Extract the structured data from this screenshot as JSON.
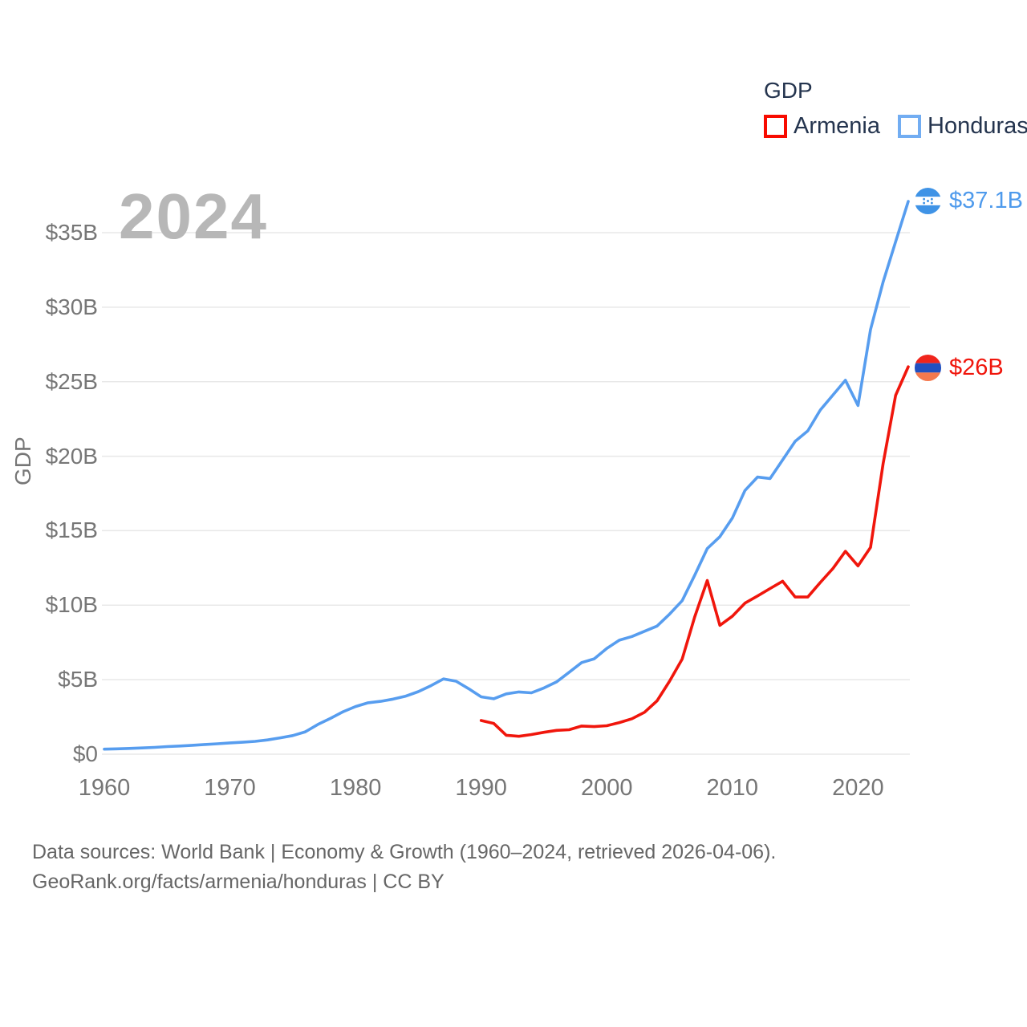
{
  "watermark_year": "2024",
  "legend": {
    "title": "GDP",
    "items": [
      {
        "label": "Armenia",
        "swatch_color": "#f80b00"
      },
      {
        "label": "Honduras",
        "swatch_color": "#72adf2"
      }
    ]
  },
  "end_labels": {
    "honduras": {
      "value_label": "$37.1B",
      "flag_icon": "honduras-flag-icon",
      "text_color": "#4e9aec"
    },
    "armenia": {
      "value_label": "$26B",
      "flag_icon": "armenia-flag-icon",
      "text_color": "#f0160c"
    }
  },
  "footer": {
    "line1": "Data sources: World Bank | Economy & Growth (1960–2024, retrieved 2026-04-06).",
    "line2": "GeoRank.org/facts/armenia/honduras | CC BY"
  },
  "chart_data": {
    "type": "line",
    "title": "GDP",
    "ylabel": "GDP",
    "xlabel": "",
    "unit": "current US$, billions",
    "xlim": [
      1960,
      2024
    ],
    "ylim": [
      0,
      37.5
    ],
    "grid": "horizontal-only",
    "legend_position": "top-right",
    "x_ticks": [
      1960,
      1970,
      1980,
      1990,
      2000,
      2010,
      2020
    ],
    "x_tick_labels": [
      "1960",
      "1970",
      "1980",
      "1990",
      "2000",
      "2010",
      "2020"
    ],
    "y_ticks": [
      0,
      5,
      10,
      15,
      20,
      25,
      30,
      35
    ],
    "y_tick_labels": [
      "$0",
      "$5B",
      "$10B",
      "$15B",
      "$20B",
      "$25B",
      "$30B",
      "$35B"
    ],
    "series": [
      {
        "name": "Honduras",
        "color": "#579def",
        "start_year": 1960,
        "end_value_label": "$37.1B",
        "values": [
          0.34,
          0.36,
          0.39,
          0.42,
          0.46,
          0.51,
          0.55,
          0.6,
          0.65,
          0.7,
          0.76,
          0.8,
          0.86,
          0.96,
          1.1,
          1.25,
          1.5,
          2.0,
          2.4,
          2.85,
          3.2,
          3.45,
          3.55,
          3.7,
          3.9,
          4.2,
          4.6,
          5.05,
          4.9,
          4.4,
          3.85,
          3.72,
          4.05,
          4.18,
          4.12,
          4.45,
          4.85,
          5.5,
          6.15,
          6.4,
          7.1,
          7.65,
          7.9,
          8.25,
          8.6,
          9.4,
          10.3,
          12.0,
          13.8,
          14.6,
          15.85,
          17.7,
          18.6,
          18.5,
          19.75,
          21.0,
          21.7,
          23.1,
          24.1,
          25.1,
          23.4,
          28.5,
          31.7,
          34.4,
          37.1
        ]
      },
      {
        "name": "Armenia",
        "color": "#f0160c",
        "start_year": 1990,
        "end_value_label": "$26B",
        "values": [
          2.26,
          2.07,
          1.27,
          1.2,
          1.32,
          1.47,
          1.6,
          1.64,
          1.89,
          1.85,
          1.91,
          2.12,
          2.38,
          2.81,
          3.58,
          4.9,
          6.38,
          9.21,
          11.66,
          8.65,
          9.26,
          10.14,
          10.62,
          11.12,
          11.61,
          10.55,
          10.55,
          11.53,
          12.46,
          13.62,
          12.64,
          13.88,
          19.51,
          24.09,
          26.0
        ]
      }
    ]
  }
}
